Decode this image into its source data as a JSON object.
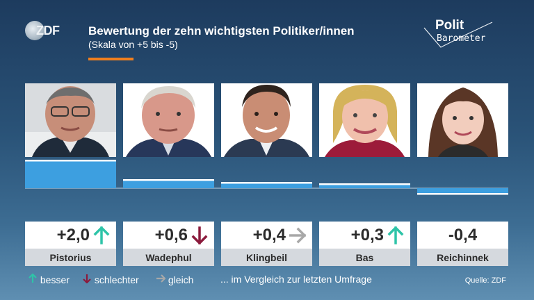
{
  "header": {
    "title": "Bewertung der zehn wichtigsten Politiker/innen",
    "subtitle": "(Skala von +5 bis -5)",
    "channel_logo": "ZDF",
    "show_logo_top": "Polit",
    "show_logo_bottom": "Barometer"
  },
  "colors": {
    "bar": "#3d9fe0",
    "bar_highlight": "#ffffff",
    "up_arrow": "#2ec4a8",
    "down_arrow": "#8b1a3c",
    "same_arrow": "#a8a8a8",
    "accent": "#f07f1e"
  },
  "chart_data": {
    "type": "bar",
    "title": "Bewertung der zehn wichtigsten Politiker/innen",
    "subtitle": "(Skala von +5 bis -5)",
    "categories": [
      "Pistorius",
      "Wadephul",
      "Klingbeil",
      "Bas",
      "Reichinnek"
    ],
    "values": [
      2.0,
      0.6,
      0.4,
      0.3,
      -0.4
    ],
    "labels": [
      "+2,0",
      "+0,6",
      "+0,4",
      "+0,3",
      "-0,4"
    ],
    "trend": [
      "up",
      "down",
      "same",
      "up",
      "none"
    ],
    "trend_icons": [
      "arrow-up-icon",
      "arrow-down-icon",
      "arrow-right-icon",
      "arrow-up-icon",
      ""
    ],
    "ylim": [
      -5,
      5
    ]
  },
  "legend": {
    "better": "besser",
    "worse": "schlechter",
    "same": "gleich",
    "note": "... im Vergleich zur letzten Umfrage"
  },
  "source": "Quelle: ZDF"
}
